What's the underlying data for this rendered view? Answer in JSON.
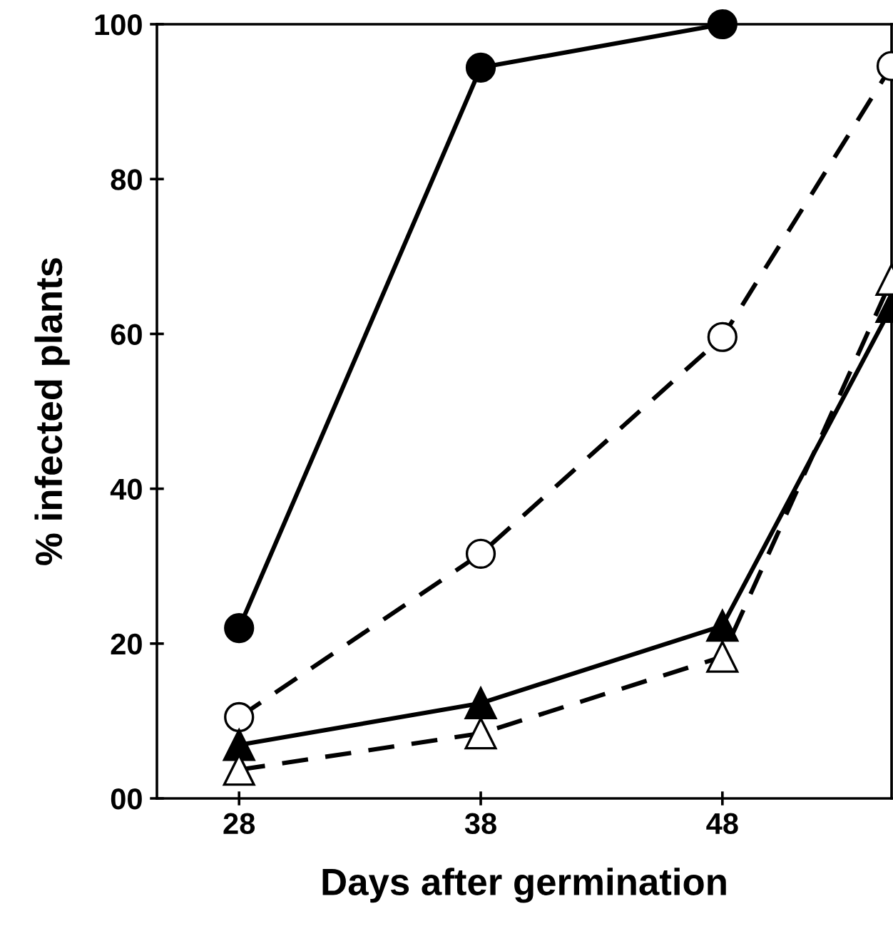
{
  "chart_data": {
    "type": "line",
    "xlabel": "Days after germination",
    "ylabel": "% infected plants",
    "x": [
      28,
      38,
      48,
      55
    ],
    "series": [
      {
        "color": "#000000",
        "values": [
          22,
          94.4,
          100,
          null
        ],
        "marker": "circle",
        "line_style": "solid"
      },
      {
        "color": "#000000",
        "values": [
          10.5,
          31.6,
          59.6,
          94.6
        ],
        "marker": "circle",
        "line_style": "dashed"
      },
      {
        "color": "#000000",
        "values": [
          6.9,
          12.3,
          22.3,
          63.5
        ],
        "marker": "triangle",
        "line_style": "solid"
      },
      {
        "color": "#000000",
        "values": [
          3.7,
          8.4,
          18.3,
          67
        ],
        "marker": "triangle",
        "line_style": "dashed"
      }
    ],
    "xlim": [
      24.6,
      55
    ],
    "ylim": [
      0,
      100
    ],
    "xticks": [
      28,
      38,
      48
    ],
    "yticks": [
      {
        "value": 0,
        "label": "00"
      },
      20,
      40,
      60,
      80,
      100
    ],
    "grid": false,
    "legend": false
  }
}
